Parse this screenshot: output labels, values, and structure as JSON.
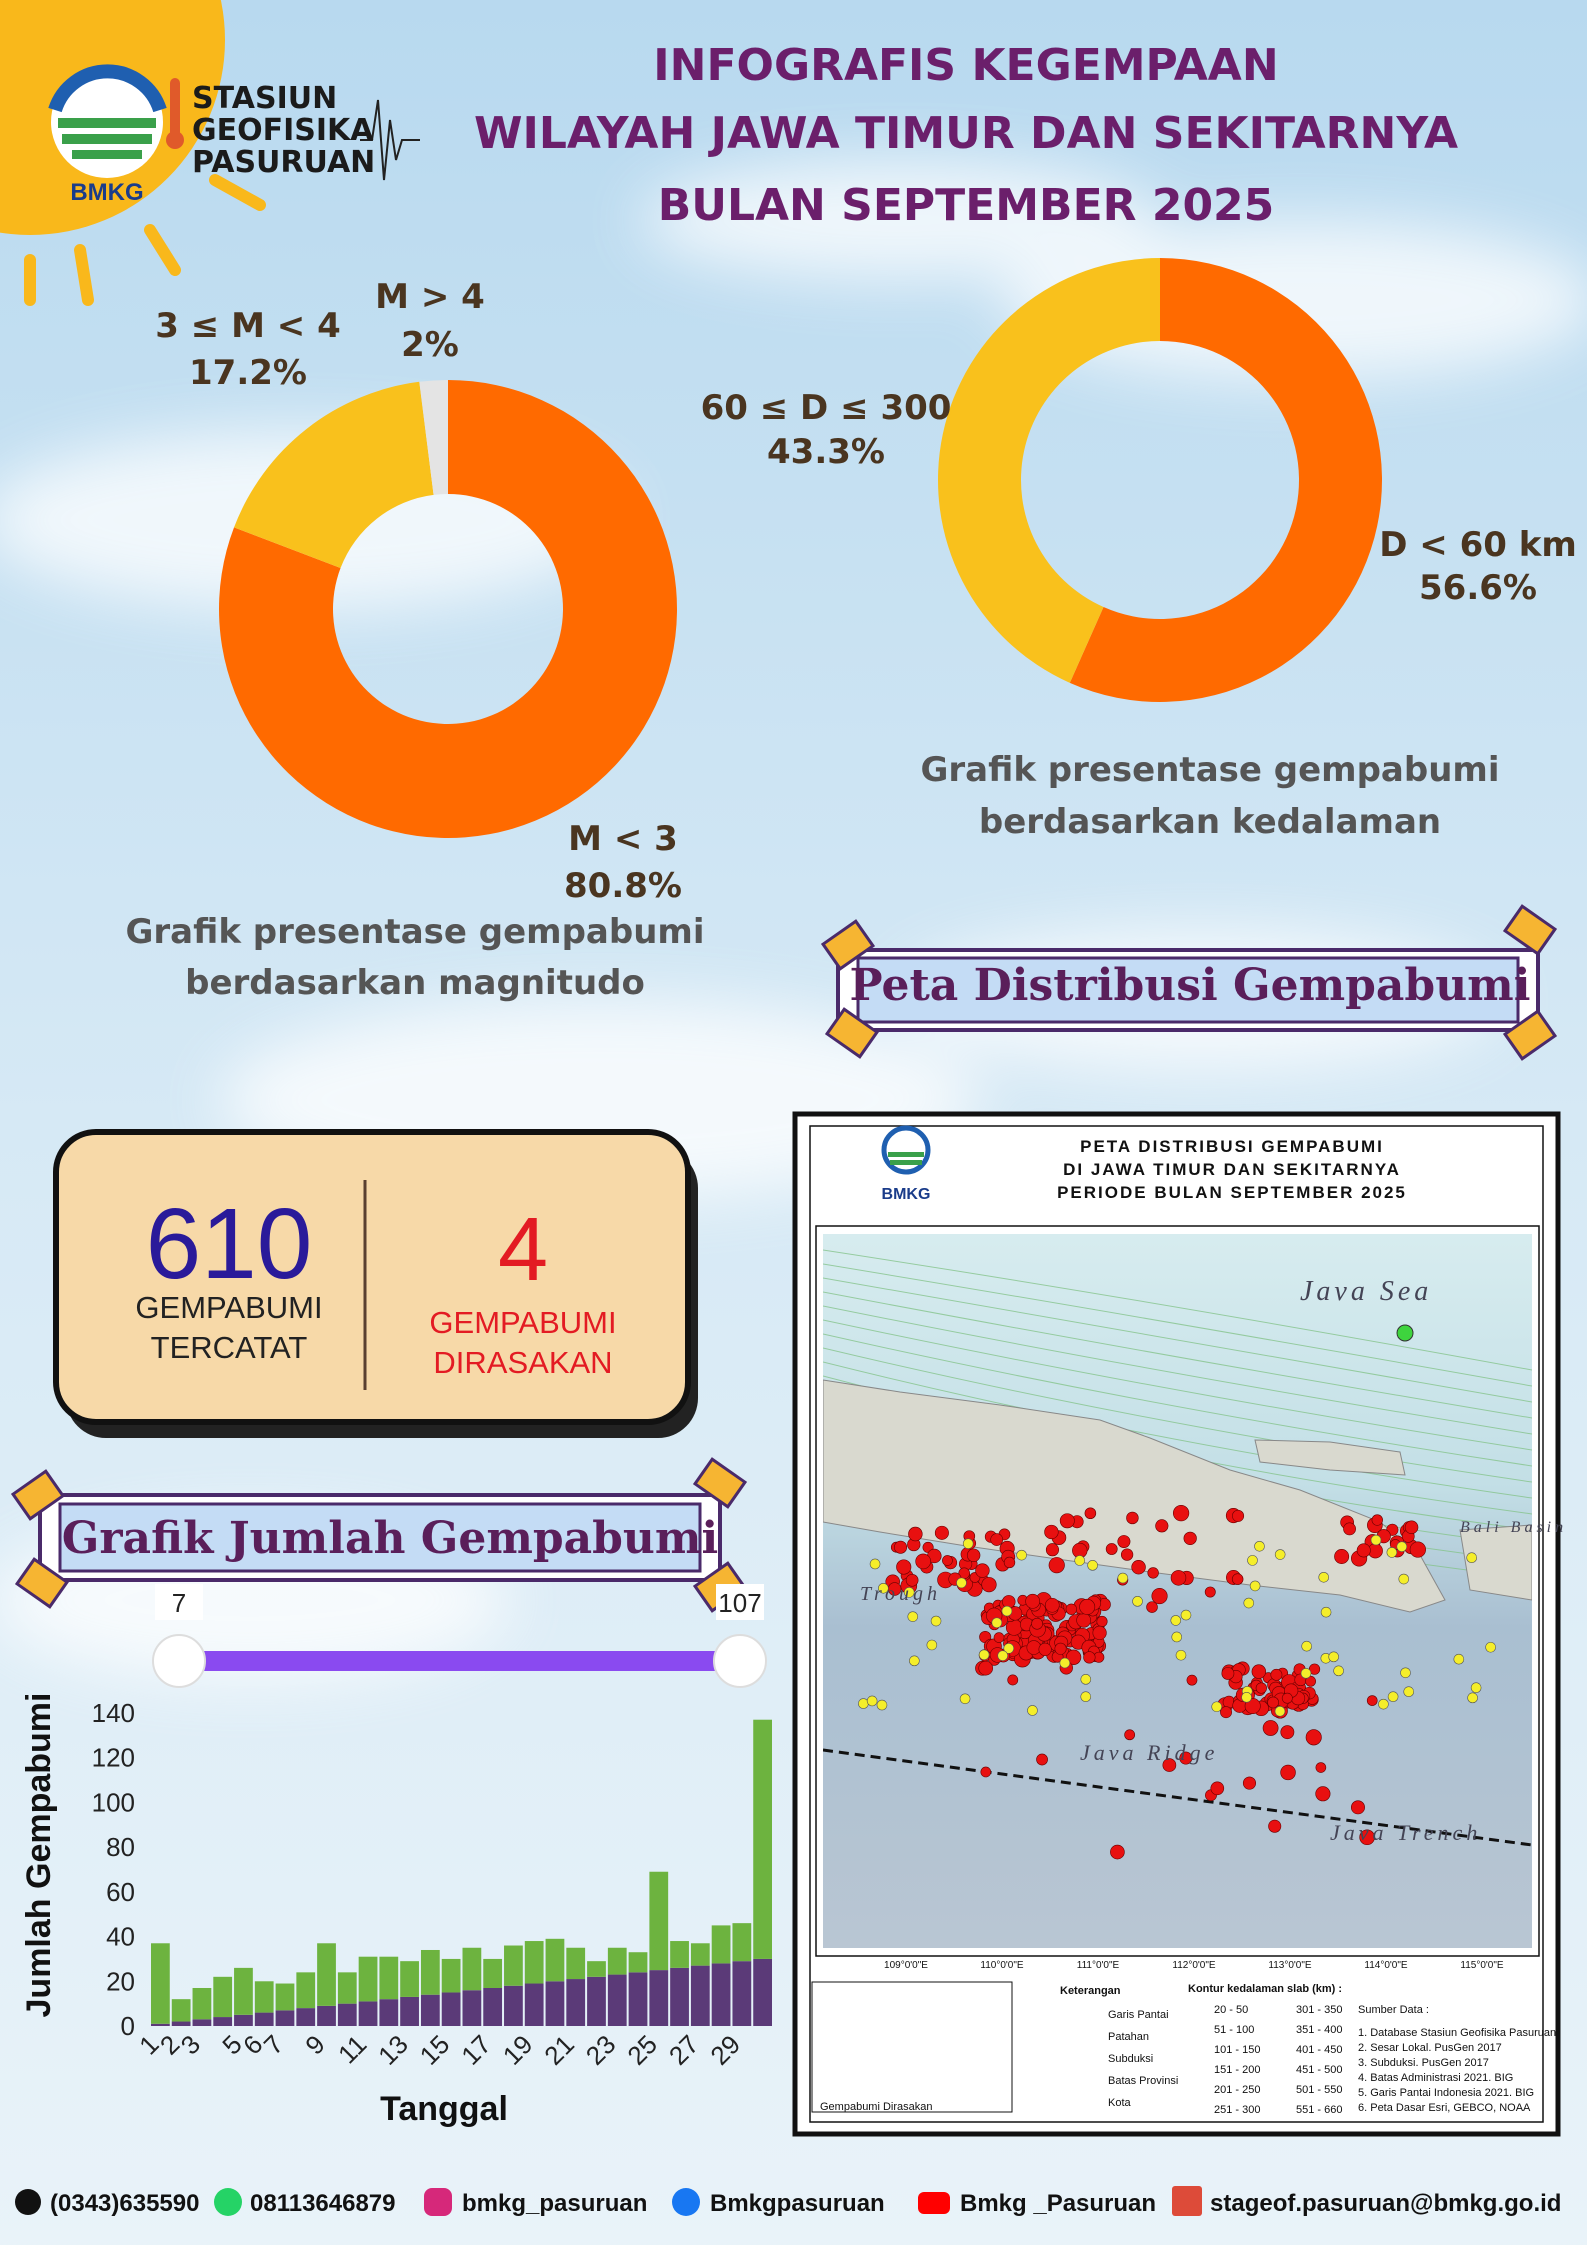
{
  "header": {
    "logo": "BMKG",
    "station": [
      "STASIUN",
      "GEOFISIKA",
      "PASURUAN"
    ],
    "title": [
      "INFOGRAFIS KEGEMPAAN",
      "WILAYAH JAWA TIMUR DAN SEKITARNYA",
      "BULAN SEPTEMBER  2025"
    ]
  },
  "chart_data": [
    {
      "type": "pie",
      "title": [
        "Grafik presentase gempabumi",
        "berdasarkan magnitudo"
      ],
      "categories": [
        "M < 3",
        "3 ≤ M < 4",
        "M > 4"
      ],
      "values": [
        80.8,
        17.2,
        2
      ],
      "value_labels": [
        "80.8%",
        "17.2%",
        "2%"
      ],
      "colors": [
        "#ff6a00",
        "#f9c11c",
        "#e4e4e4"
      ]
    },
    {
      "type": "pie",
      "title": [
        "Grafik presentase gempabumi",
        "berdasarkan kedalaman"
      ],
      "categories": [
        "D < 60 km",
        "60 ≤ D ≤ 300"
      ],
      "values": [
        56.6,
        43.3
      ],
      "value_labels": [
        "56.6%",
        "43.3%"
      ],
      "colors": [
        "#ff6a00",
        "#f9c11c"
      ]
    },
    {
      "type": "bar",
      "title": "Grafik Jumlah Gempabumi",
      "stacked": true,
      "slider": [
        7,
        107
      ],
      "categories": [
        "1",
        "2",
        "3",
        null,
        "5",
        "6",
        "7",
        null,
        "9",
        null,
        "11",
        null,
        "13",
        null,
        "15",
        null,
        "17",
        null,
        "19",
        null,
        "21",
        null,
        "23",
        null,
        "25",
        null,
        "27",
        null,
        "29",
        null
      ],
      "series": [
        {
          "color": "#5b3a78",
          "values": [
            1,
            2,
            3,
            4,
            5,
            6,
            7,
            8,
            9,
            10,
            11,
            12,
            13,
            14,
            15,
            16,
            17,
            18,
            19,
            20,
            21,
            22,
            23,
            24,
            25,
            26,
            27,
            28,
            29,
            30
          ]
        },
        {
          "color": "#6db33f",
          "values": [
            36,
            10,
            14,
            18,
            21,
            14,
            12,
            16,
            28,
            14,
            20,
            19,
            16,
            20,
            15,
            19,
            13,
            18,
            19,
            19,
            14,
            7,
            12,
            9,
            44,
            12,
            10,
            17,
            17,
            107
          ]
        }
      ],
      "ylim": [
        0,
        140
      ],
      "yticks": [
        0,
        20,
        40,
        60,
        80,
        100,
        120,
        140
      ],
      "ylabel": "Jumlah Gempabumi",
      "xlabel": "Tanggal"
    }
  ],
  "summary": {
    "recorded": {
      "value": 610,
      "label": [
        "GEMPABUMI",
        "TERCATAT"
      ]
    },
    "felt": {
      "value": 4,
      "label": [
        "GEMPABUMI",
        "DIRASAKAN"
      ]
    }
  },
  "map": {
    "banner": "Peta Distribusi Gempabumi",
    "logo": "BMKG",
    "title": [
      "PETA DISTRIBUSI GEMPABUMI",
      "DI JAWA TIMUR DAN SEKITARNYA",
      "PERIODE BULAN  SEPTEMBER 2025"
    ],
    "places": [
      "Java Sea",
      "Java Ridge",
      "Java Trench",
      "Trough",
      "Bali Basin"
    ],
    "lon_ticks": [
      "109°0'0\"E",
      "110°0'0\"E",
      "111°0'0\"E",
      "112°0'0\"E",
      "113°0'0\"E",
      "114°0'0\"E",
      "115°0'0\"E"
    ],
    "legend_heading": "Keterangan",
    "legend_items": [
      "Garis Pantai",
      "Patahan",
      "Subduksi",
      "Batas Provinsi",
      "Kota"
    ],
    "felt_label": "Gempabumi Dirasakan",
    "contour_heading": "Kontur kedalaman slab (km) :",
    "contours": [
      "20 - 50",
      "51 - 100",
      "101 - 150",
      "151 - 200",
      "201 - 250",
      "251 - 300",
      "301 - 350",
      "351 - 400",
      "401 - 450",
      "451 - 500",
      "501 - 550",
      "551 - 660"
    ],
    "source_heading": "Sumber Data :",
    "sources": [
      "1. Database Stasiun Geofisika Pasuruan",
      "2. Sesar Lokal. PusGen 2017",
      "3. Subduksi. PusGen 2017",
      "4. Batas Administrasi 2021. BIG",
      "5. Garis Pantai Indonesia 2021. BIG",
      "6. Peta Dasar Esri, GEBCO, NOAA"
    ]
  },
  "footer": [
    "(0343)635590",
    "08113646879",
    "bmkg_pasuruan",
    "Bmkgpasuruan",
    "Bmkg _Pasuruan",
    "stageof.pasuruan@bmkg.go.id"
  ]
}
